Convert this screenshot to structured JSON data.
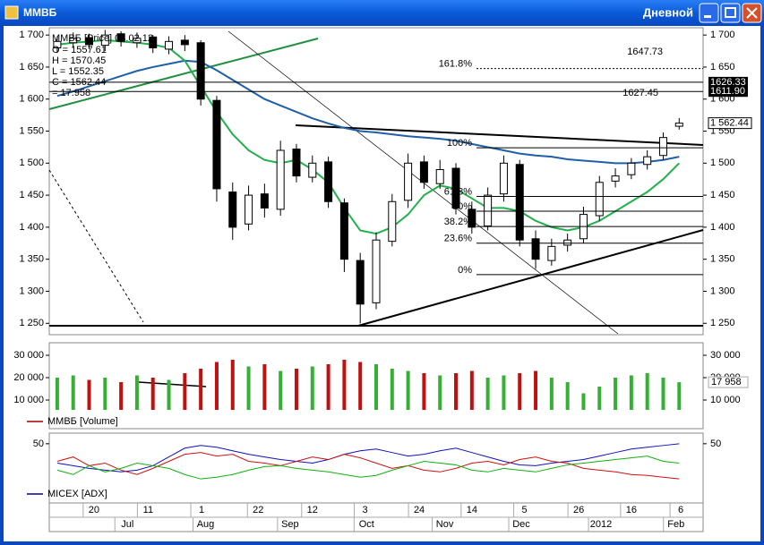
{
  "window": {
    "title": "ММВБ",
    "period": "Дневной"
  },
  "chart_data": [
    {
      "type": "candlestick",
      "title": "ММВБ [Price] 03.02.12",
      "info": [
        "O = 1557.61",
        "H = 1570.45",
        "L = 1552.35",
        "C = 1562.44",
        "= 17.958"
      ],
      "open": [
        1680,
        1688,
        1696,
        1684,
        1702,
        1688,
        1697,
        1678,
        1692,
        1688,
        1598,
        1455,
        1405,
        1452,
        1428,
        1522,
        1478,
        1502,
        1438,
        1348,
        1282,
        1378,
        1442,
        1502,
        1468,
        1492,
        1428,
        1402,
        1452,
        1498,
        1382,
        1348,
        1372,
        1382,
        1418,
        1472,
        1482,
        1498,
        1512,
        1557.61
      ],
      "high": [
        1698,
        1704,
        1702,
        1708,
        1706,
        1704,
        1700,
        1698,
        1700,
        1692,
        1605,
        1470,
        1465,
        1468,
        1535,
        1530,
        1512,
        1510,
        1445,
        1360,
        1392,
        1452,
        1515,
        1512,
        1505,
        1500,
        1440,
        1462,
        1512,
        1505,
        1395,
        1382,
        1390,
        1432,
        1480,
        1492,
        1508,
        1520,
        1548,
        1570.45
      ],
      "low": [
        1672,
        1680,
        1678,
        1675,
        1682,
        1680,
        1672,
        1670,
        1675,
        1590,
        1440,
        1380,
        1395,
        1415,
        1418,
        1470,
        1470,
        1430,
        1330,
        1250,
        1272,
        1370,
        1430,
        1460,
        1460,
        1420,
        1390,
        1395,
        1440,
        1370,
        1335,
        1340,
        1362,
        1375,
        1410,
        1462,
        1475,
        1490,
        1505,
        1552.35
      ],
      "close": [
        1690,
        1695,
        1685,
        1700,
        1690,
        1695,
        1680,
        1690,
        1685,
        1600,
        1460,
        1400,
        1450,
        1430,
        1520,
        1480,
        1500,
        1440,
        1350,
        1280,
        1380,
        1440,
        1500,
        1470,
        1490,
        1430,
        1400,
        1450,
        1500,
        1380,
        1350,
        1370,
        1380,
        1420,
        1470,
        1480,
        1500,
        1510,
        1540,
        1562.44
      ],
      "overlays": [
        {
          "color": "#1f5fa8",
          "values": [
            1605,
            1612,
            1620,
            1628,
            1636,
            1644,
            1650,
            1655,
            1660,
            1658,
            1645,
            1630,
            1615,
            1600,
            1590,
            1580,
            1570,
            1562,
            1555,
            1550,
            1548,
            1545,
            1542,
            1540,
            1538,
            1535,
            1530,
            1525,
            1520,
            1515,
            1512,
            1510,
            1506,
            1504,
            1502,
            1500,
            1500,
            1502,
            1505,
            1510
          ]
        },
        {
          "color": "#22b14c",
          "values": [
            1685,
            1688,
            1690,
            1692,
            1690,
            1688,
            1685,
            1680,
            1660,
            1620,
            1580,
            1545,
            1520,
            1505,
            1500,
            1505,
            1490,
            1470,
            1430,
            1395,
            1390,
            1400,
            1420,
            1450,
            1465,
            1460,
            1445,
            1430,
            1430,
            1425,
            1410,
            1400,
            1395,
            1400,
            1410,
            1425,
            1440,
            1455,
            1475,
            1500
          ]
        }
      ],
      "ylim": [
        1235,
        1710
      ],
      "yticks": [
        {
          "value": 1250,
          "label": "1 250"
        },
        {
          "value": 1300,
          "label": "1 300"
        },
        {
          "value": 1350,
          "label": "1 350"
        },
        {
          "value": 1400,
          "label": "1 400"
        },
        {
          "value": 1450,
          "label": "1 450"
        },
        {
          "value": 1500,
          "label": "1 500"
        },
        {
          "value": 1550,
          "label": "1 550"
        },
        {
          "value": 1600,
          "label": "1 600"
        },
        {
          "value": 1650,
          "label": "1 650"
        },
        {
          "value": 1700,
          "label": "1 700"
        }
      ],
      "levels": [
        {
          "value": 1626.33,
          "label": "1626.33"
        },
        {
          "value": 1611.9,
          "label": "1611.90"
        }
      ],
      "last": {
        "value": 1562.44,
        "label": "1 562.44"
      },
      "fib": [
        {
          "value": 1647.73,
          "label": "161.8%"
        },
        {
          "value": 1524,
          "label": "100%"
        },
        {
          "value": 1448,
          "label": "61.8%"
        },
        {
          "value": 1425,
          "label": "50%"
        },
        {
          "value": 1401,
          "label": "38.2%"
        },
        {
          "value": 1375,
          "label": "23.6%"
        },
        {
          "value": 1326,
          "label": "0%"
        }
      ],
      "annotations": [
        "1647.73",
        "1627.45"
      ],
      "annotation_color": "#d03030"
    },
    {
      "type": "bar",
      "title": "ММВБ [Volume]",
      "legend_color": "#a00000",
      "values": [
        20000,
        21000,
        19000,
        20000,
        18000,
        21000,
        20000,
        19000,
        22000,
        24000,
        27000,
        28000,
        25000,
        26000,
        23000,
        24000,
        25000,
        26000,
        28000,
        27000,
        26000,
        24000,
        23000,
        22000,
        21000,
        22000,
        23000,
        20000,
        21000,
        22000,
        23000,
        20000,
        18000,
        13000,
        16000,
        20000,
        21000,
        22000,
        20000,
        17958
      ],
      "last_label": "17 958",
      "up_color": "#35b035",
      "down_color": "#c01010",
      "ylim": [
        5600,
        33600
      ],
      "yticks": [
        {
          "value": 10000,
          "label": "10 000"
        },
        {
          "value": 20000,
          "label": "20 000"
        },
        {
          "value": 30000,
          "label": "30 000"
        }
      ]
    },
    {
      "type": "line",
      "title": "MICEX [ADX]",
      "legend_color": "#00008b",
      "series": [
        {
          "color": "#1010c0",
          "values": [
            28,
            25,
            22,
            20,
            18,
            20,
            25,
            35,
            45,
            48,
            46,
            42,
            38,
            35,
            32,
            30,
            28,
            32,
            38,
            42,
            44,
            40,
            36,
            38,
            42,
            45,
            40,
            35,
            30,
            26,
            25,
            28,
            30,
            32,
            36,
            40,
            44,
            46,
            48,
            50
          ]
        },
        {
          "color": "#d01010",
          "values": [
            30,
            35,
            25,
            28,
            20,
            15,
            22,
            30,
            38,
            40,
            36,
            38,
            30,
            28,
            25,
            30,
            35,
            32,
            38,
            34,
            28,
            22,
            25,
            20,
            18,
            22,
            28,
            30,
            26,
            32,
            35,
            30,
            28,
            22,
            20,
            18,
            15,
            14,
            12,
            10
          ]
        },
        {
          "color": "#10b010",
          "values": [
            20,
            15,
            25,
            18,
            22,
            28,
            25,
            22,
            15,
            10,
            12,
            15,
            20,
            24,
            25,
            22,
            20,
            18,
            15,
            12,
            14,
            20,
            25,
            30,
            28,
            26,
            20,
            18,
            22,
            20,
            18,
            22,
            26,
            28,
            30,
            32,
            34,
            36,
            30,
            28
          ]
        }
      ],
      "ylim": [
        0,
        59
      ],
      "yticks": [
        50
      ],
      "xlim": [
        -0.5,
        40.5
      ],
      "xticks": [
        {
          "value": 2.3,
          "label": "20"
        },
        {
          "value": 5.7,
          "label": "11"
        },
        {
          "value": 9.05,
          "label": "1"
        },
        {
          "value": 12.6,
          "label": "22"
        },
        {
          "value": 16.0,
          "label": "12"
        },
        {
          "value": 19.3,
          "label": "3"
        },
        {
          "value": 22.7,
          "label": "24"
        },
        {
          "value": 26.0,
          "label": "14"
        },
        {
          "value": 29.3,
          "label": "5"
        },
        {
          "value": 32.7,
          "label": "26"
        },
        {
          "value": 36.0,
          "label": "16"
        },
        {
          "value": 39.1,
          "label": "6"
        }
      ],
      "month_ticks": [
        {
          "value": 4.4,
          "label": "Jul"
        },
        {
          "value": 9.3,
          "label": "Aug"
        },
        {
          "value": 14.6,
          "label": "Sep"
        },
        {
          "value": 19.4,
          "label": "Oct"
        },
        {
          "value": 24.3,
          "label": "Nov"
        },
        {
          "value": 29.1,
          "label": "Dec"
        },
        {
          "value": 34.1,
          "label": "2012"
        },
        {
          "value": 38.8,
          "label": "Feb"
        }
      ]
    }
  ]
}
